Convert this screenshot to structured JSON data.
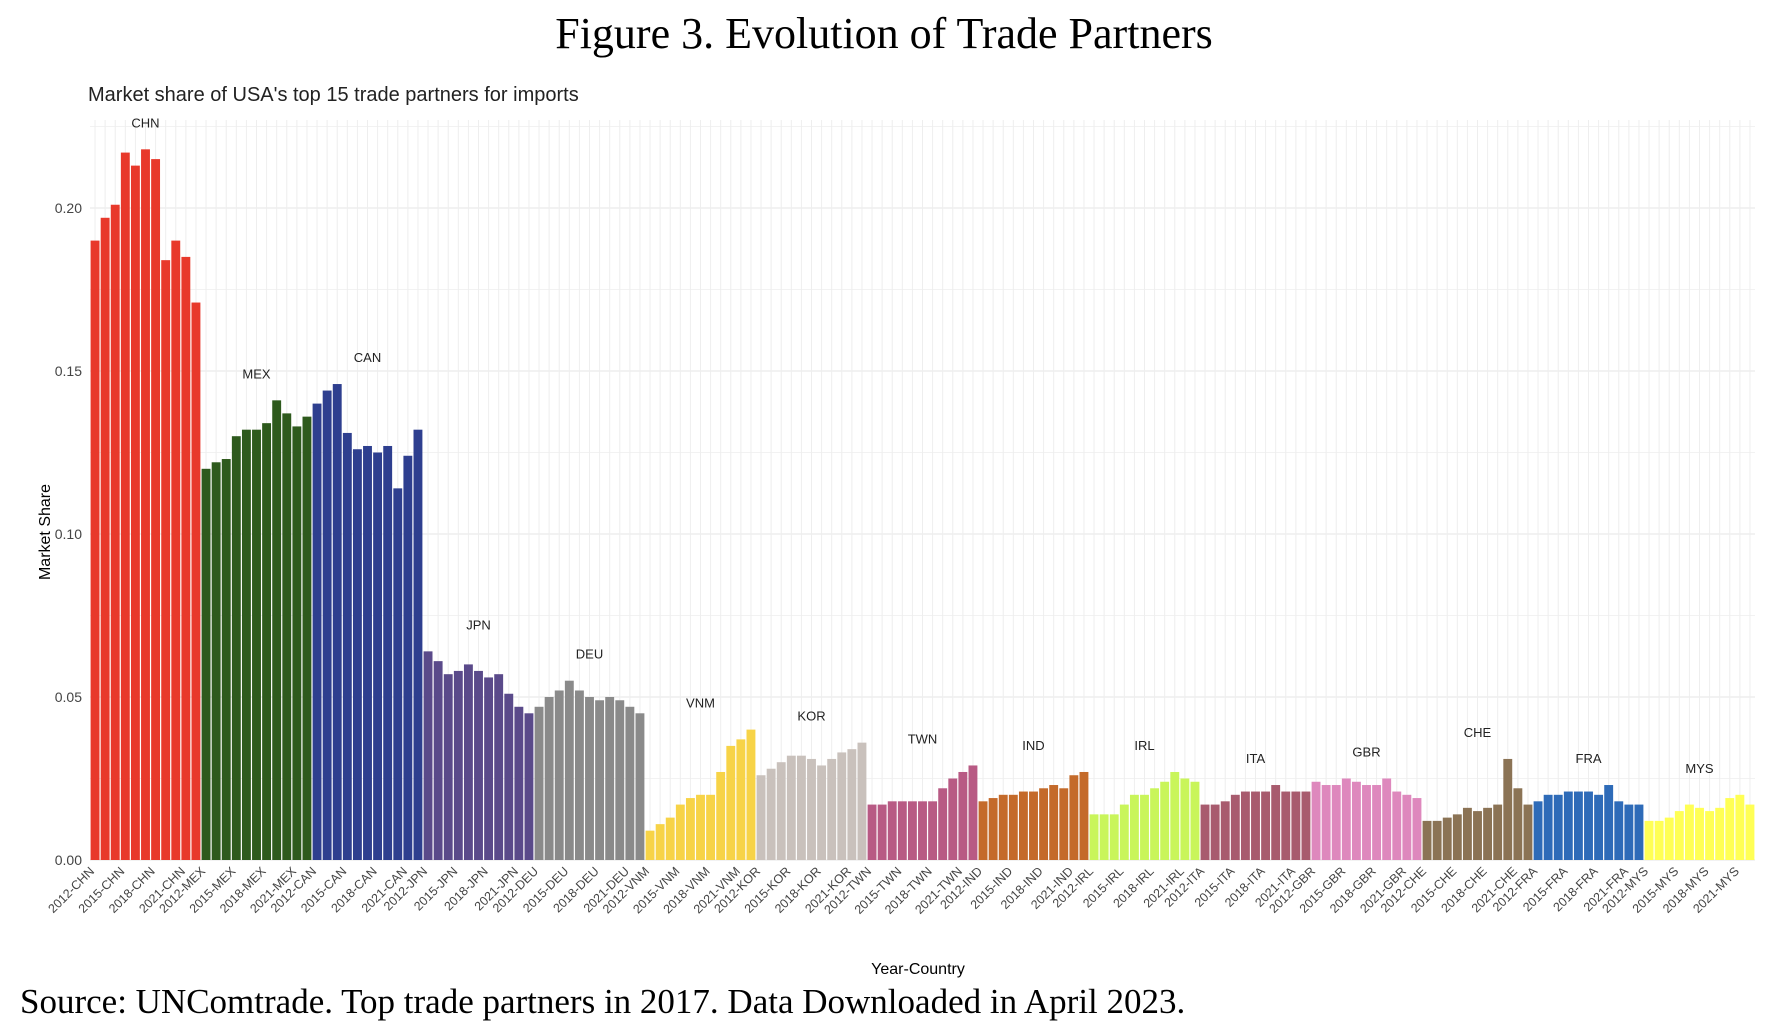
{
  "figure_title": "Figure 3. Evolution of Trade Partners",
  "source_note": "Source: UNComtrade. Top trade partners in 2017. Data Downloaded in April 2023.",
  "chart_data": {
    "type": "bar",
    "title": "Market share of USA's top 15 trade partners for imports",
    "xlabel": "Year-Country",
    "ylabel": "Market Share",
    "ylim": [
      0,
      0.225
    ],
    "yticks": [
      0.0,
      0.05,
      0.1,
      0.15,
      0.2
    ],
    "ytick_labels": [
      "0.00",
      "0.05",
      "0.10",
      "0.15",
      "0.20"
    ],
    "grid": true,
    "legend": "none",
    "years": [
      2012,
      2013,
      2014,
      2015,
      2016,
      2017,
      2018,
      2019,
      2020,
      2021,
      2022
    ],
    "tick_years": [
      2012,
      2015,
      2018,
      2021
    ],
    "series": [
      {
        "name": "CHN",
        "color": "#e8392b",
        "values": [
          0.19,
          0.197,
          0.201,
          0.217,
          0.213,
          0.218,
          0.215,
          0.184,
          0.19,
          0.185,
          0.171
        ]
      },
      {
        "name": "MEX",
        "color": "#2e5a1d",
        "values": [
          0.12,
          0.122,
          0.123,
          0.13,
          0.132,
          0.132,
          0.134,
          0.141,
          0.137,
          0.133,
          0.136
        ]
      },
      {
        "name": "CAN",
        "color": "#2e3f8f",
        "values": [
          0.14,
          0.144,
          0.146,
          0.131,
          0.126,
          0.127,
          0.125,
          0.127,
          0.114,
          0.124,
          0.132
        ]
      },
      {
        "name": "JPN",
        "color": "#5a4a8a",
        "values": [
          0.064,
          0.061,
          0.057,
          0.058,
          0.06,
          0.058,
          0.056,
          0.057,
          0.051,
          0.047,
          0.045
        ]
      },
      {
        "name": "DEU",
        "color": "#8a8a8a",
        "values": [
          0.047,
          0.05,
          0.052,
          0.055,
          0.052,
          0.05,
          0.049,
          0.05,
          0.049,
          0.047,
          0.045
        ]
      },
      {
        "name": "VNM",
        "color": "#f7d347",
        "values": [
          0.009,
          0.011,
          0.013,
          0.017,
          0.019,
          0.02,
          0.02,
          0.027,
          0.035,
          0.037,
          0.04
        ]
      },
      {
        "name": "KOR",
        "color": "#c9c1bc",
        "values": [
          0.026,
          0.028,
          0.03,
          0.032,
          0.032,
          0.031,
          0.029,
          0.031,
          0.033,
          0.034,
          0.036
        ]
      },
      {
        "name": "TWN",
        "color": "#b85a84",
        "values": [
          0.017,
          0.017,
          0.018,
          0.018,
          0.018,
          0.018,
          0.018,
          0.022,
          0.025,
          0.027,
          0.029
        ]
      },
      {
        "name": "IND",
        "color": "#c46a2a",
        "values": [
          0.018,
          0.019,
          0.02,
          0.02,
          0.021,
          0.021,
          0.022,
          0.023,
          0.022,
          0.026,
          0.027
        ]
      },
      {
        "name": "IRL",
        "color": "#c9f55a",
        "values": [
          0.014,
          0.014,
          0.014,
          0.017,
          0.02,
          0.02,
          0.022,
          0.024,
          0.027,
          0.025,
          0.024
        ]
      },
      {
        "name": "ITA",
        "color": "#a85b6e",
        "values": [
          0.017,
          0.017,
          0.018,
          0.02,
          0.021,
          0.021,
          0.021,
          0.023,
          0.021,
          0.021,
          0.021
        ]
      },
      {
        "name": "GBR",
        "color": "#de88bd",
        "values": [
          0.024,
          0.023,
          0.023,
          0.025,
          0.024,
          0.023,
          0.023,
          0.025,
          0.021,
          0.02,
          0.019
        ]
      },
      {
        "name": "CHE",
        "color": "#8b7355",
        "values": [
          0.012,
          0.012,
          0.013,
          0.014,
          0.016,
          0.015,
          0.016,
          0.017,
          0.031,
          0.022,
          0.017
        ]
      },
      {
        "name": "FRA",
        "color": "#2e6bb8",
        "values": [
          0.018,
          0.02,
          0.02,
          0.021,
          0.021,
          0.021,
          0.02,
          0.023,
          0.018,
          0.017,
          0.017
        ]
      },
      {
        "name": "MYS",
        "color": "#ffff55",
        "values": [
          0.012,
          0.012,
          0.013,
          0.015,
          0.017,
          0.016,
          0.015,
          0.016,
          0.019,
          0.02,
          0.017
        ]
      }
    ]
  }
}
